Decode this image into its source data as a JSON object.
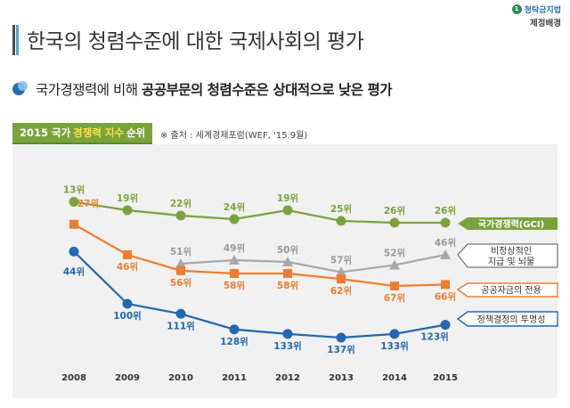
{
  "logo": {
    "line1": "청탁금지법",
    "line2": "제정배경",
    "badge": "1"
  },
  "title": "한국의 청렴수준에 대한 국제사회의 평가",
  "subtitle": {
    "normal": "국가경쟁력에 비해 ",
    "bold": "공공부문의 청렴수준은 상대적으로 낮은 평가"
  },
  "chart_header": {
    "prefix": "2015 국가",
    "highlight": "경쟁력 지수",
    "suffix": "순위"
  },
  "source": "※ 출처 : 세계경제포럼(WEF, '15.9월)",
  "colors": {
    "green": "#7aa33c",
    "gray": "#a8a8a8",
    "orange": "#ef7d30",
    "blue": "#2268b0"
  },
  "chart_data": {
    "type": "line",
    "x": [
      "2008",
      "2009",
      "2010",
      "2011",
      "2012",
      "2013",
      "2014",
      "2015"
    ],
    "y_inverted": true,
    "series": [
      {
        "name": "국가경쟁력(GCI)",
        "color": "#7aa33c",
        "marker": "circle",
        "values": [
          13,
          19,
          22,
          24,
          19,
          25,
          26,
          26
        ],
        "labels": [
          "13위",
          "19위",
          "22위",
          "24위",
          "19위",
          "25위",
          "26위",
          "26위"
        ]
      },
      {
        "name": "비정상적인 지급 및 뇌물",
        "color": "#a8a8a8",
        "marker": "triangle",
        "values": [
          null,
          null,
          51,
          49,
          50,
          57,
          52,
          46
        ],
        "labels": [
          "",
          "",
          "51위",
          "49위",
          "50위",
          "57위",
          "52위",
          "46위"
        ]
      },
      {
        "name": "공공자금의 전용",
        "color": "#ef7d30",
        "marker": "square",
        "values": [
          27,
          46,
          56,
          58,
          58,
          62,
          67,
          66
        ],
        "labels": [
          "27위",
          "46위",
          "56위",
          "58위",
          "58위",
          "62위",
          "67위",
          "66위"
        ]
      },
      {
        "name": "정책결정의 투명성",
        "color": "#2268b0",
        "marker": "circle",
        "values": [
          44,
          100,
          111,
          128,
          133,
          137,
          133,
          123
        ],
        "labels": [
          "44위",
          "100위",
          "111위",
          "128위",
          "133위",
          "137위",
          "133위",
          "123위"
        ]
      }
    ],
    "legend_labels": [
      "국가경쟁력(GCI)",
      "비정상적인",
      "지급 및 뇌물",
      "공공자금의 전용",
      "정책결정의 투명성"
    ]
  }
}
